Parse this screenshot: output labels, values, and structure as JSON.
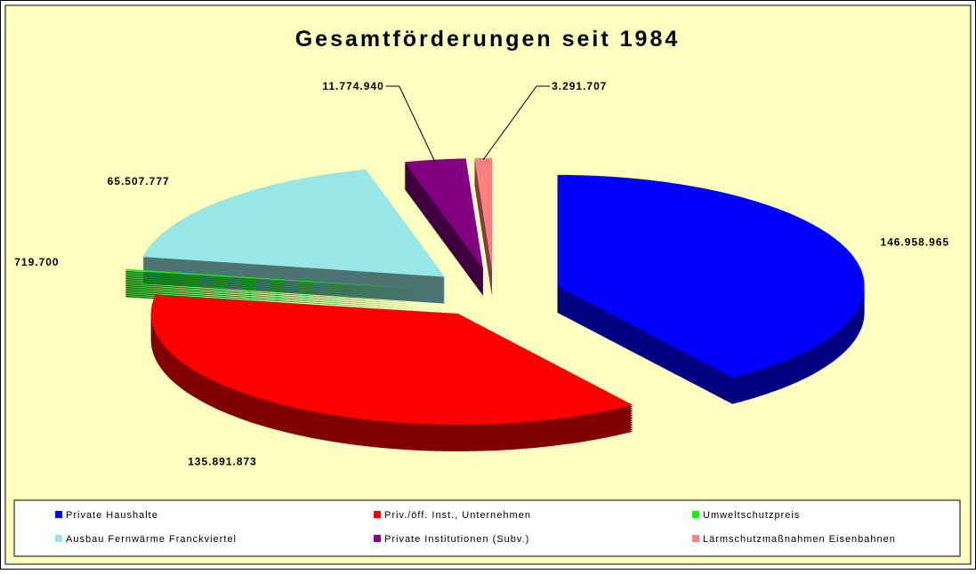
{
  "chart_data": {
    "type": "pie3d",
    "title": "Gesamtförderungen seit 1984",
    "categories": [
      "Private Haushalte",
      "Priv./öff. Inst., Unternehmen",
      "Umweltschutzpreis",
      "Ausbau Fernwärme Franckviertel",
      "Private Institutionen (Subv.)",
      "Lärmschutzmaßnahmen Eisenbahnen"
    ],
    "values": [
      146958965,
      135891873,
      719700,
      65507777,
      11774940,
      3291707
    ],
    "value_labels": [
      "146.958.965",
      "135.891.873",
      "719.700",
      "65.507.777",
      "11.774.940",
      "3.291.707"
    ],
    "colors": [
      "#0000ff",
      "#ff0000",
      "#00ff00",
      "#99e6e6",
      "#800080",
      "#ff8080"
    ],
    "legend": "bottom"
  }
}
